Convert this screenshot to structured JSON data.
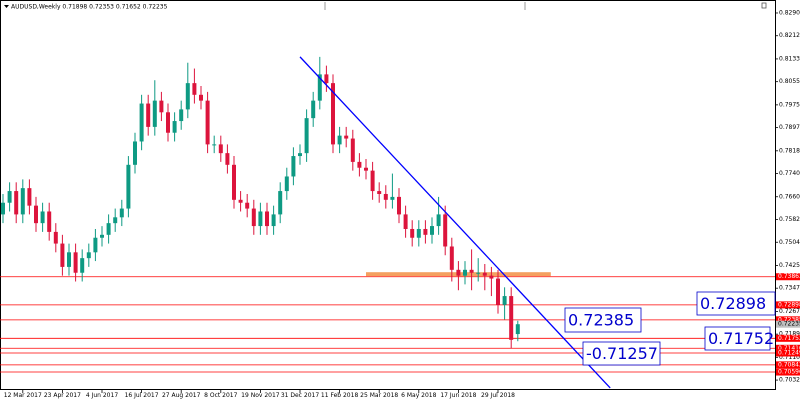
{
  "chart_data": {
    "type": "candlestick",
    "title": "AUDUSD,Weekly",
    "colors": {
      "up": "#0e9a83",
      "down": "#dc143c"
    },
    "categories": [
      null,
      null,
      null,
      "12 Mar 2017",
      null,
      null,
      null,
      null,
      null,
      "23 Apr 2017",
      null,
      null,
      null,
      null,
      null,
      "4 Jun 2017",
      null,
      null,
      null,
      null,
      null,
      "16 Jul 2017",
      null,
      null,
      null,
      null,
      null,
      "27 Aug 2017",
      null,
      null,
      null,
      null,
      null,
      "8 Oct 2017",
      null,
      null,
      null,
      null,
      null,
      "19 Nov 2017",
      null,
      null,
      null,
      null,
      null,
      "31 Dec 2017",
      null,
      null,
      null,
      null,
      null,
      "11 Feb 2018",
      null,
      null,
      null,
      null,
      null,
      "25 Mar 2018",
      null,
      null,
      null,
      null,
      null,
      "6 May 2018",
      null,
      null,
      null,
      null,
      null,
      "17 Jun 2018",
      null,
      null,
      null,
      null,
      null,
      "29 Jul 2018",
      null,
      null,
      null
    ],
    "open": [
      0.76,
      0.764,
      0.768,
      0.76,
      0.769,
      0.763,
      0.757,
      0.761,
      0.754,
      0.75,
      0.742,
      0.747,
      0.74,
      0.745,
      0.747,
      0.752,
      0.753,
      0.757,
      0.759,
      0.762,
      0.777,
      0.785,
      0.798,
      0.79,
      0.799,
      0.795,
      0.788,
      0.792,
      0.796,
      0.805,
      0.801,
      0.799,
      0.784,
      0.784,
      0.781,
      0.777,
      0.765,
      0.764,
      0.762,
      0.756,
      0.761,
      0.756,
      0.76,
      0.768,
      0.773,
      0.78,
      0.781,
      0.793,
      0.799,
      0.808,
      0.805,
      0.784,
      0.787,
      0.786,
      0.778,
      0.776,
      0.775,
      0.768,
      0.767,
      0.765,
      0.766,
      0.76,
      0.755,
      0.752,
      0.755,
      0.753,
      0.756,
      0.76,
      0.749,
      0.741,
      0.739,
      0.741,
      0.74,
      0.74,
      0.739,
      0.738,
      0.729,
      0.732,
      0.71898
    ],
    "high": [
      0.767,
      0.771,
      0.771,
      0.772,
      0.772,
      0.766,
      0.764,
      0.764,
      0.757,
      0.753,
      0.75,
      0.75,
      0.748,
      0.75,
      0.755,
      0.756,
      0.76,
      0.762,
      0.765,
      0.78,
      0.788,
      0.801,
      0.801,
      0.806,
      0.802,
      0.798,
      0.795,
      0.799,
      0.812,
      0.81,
      0.804,
      0.802,
      0.787,
      0.787,
      0.784,
      0.78,
      0.768,
      0.767,
      0.765,
      0.764,
      0.764,
      0.763,
      0.771,
      0.776,
      0.783,
      0.784,
      0.796,
      0.802,
      0.814,
      0.811,
      0.808,
      0.79,
      0.79,
      0.789,
      0.781,
      0.779,
      0.778,
      0.771,
      0.77,
      0.774,
      0.769,
      0.763,
      0.758,
      0.758,
      0.758,
      0.759,
      0.766,
      0.763,
      0.752,
      0.744,
      0.744,
      0.748,
      0.745,
      0.743,
      0.742,
      0.741,
      0.735,
      0.735,
      0.72353
    ],
    "low": [
      0.757,
      0.761,
      0.757,
      0.757,
      0.76,
      0.754,
      0.754,
      0.751,
      0.747,
      0.739,
      0.739,
      0.737,
      0.737,
      0.742,
      0.744,
      0.749,
      0.75,
      0.754,
      0.756,
      0.759,
      0.774,
      0.782,
      0.787,
      0.787,
      0.792,
      0.785,
      0.785,
      0.789,
      0.793,
      0.798,
      0.796,
      0.781,
      0.781,
      0.778,
      0.774,
      0.762,
      0.761,
      0.759,
      0.753,
      0.753,
      0.753,
      0.753,
      0.757,
      0.765,
      0.77,
      0.777,
      0.778,
      0.79,
      0.796,
      0.802,
      0.781,
      0.781,
      0.783,
      0.775,
      0.773,
      0.772,
      0.765,
      0.764,
      0.762,
      0.762,
      0.757,
      0.752,
      0.749,
      0.749,
      0.75,
      0.75,
      0.753,
      0.746,
      0.737,
      0.734,
      0.736,
      0.734,
      0.737,
      0.734,
      0.732,
      0.726,
      0.724,
      0.714,
      0.71652
    ],
    "close": [
      0.764,
      0.768,
      0.76,
      0.769,
      0.763,
      0.757,
      0.761,
      0.754,
      0.75,
      0.742,
      0.747,
      0.74,
      0.745,
      0.747,
      0.752,
      0.753,
      0.757,
      0.759,
      0.762,
      0.777,
      0.785,
      0.798,
      0.79,
      0.799,
      0.795,
      0.788,
      0.792,
      0.796,
      0.805,
      0.801,
      0.799,
      0.784,
      0.784,
      0.781,
      0.777,
      0.765,
      0.764,
      0.762,
      0.756,
      0.761,
      0.756,
      0.76,
      0.768,
      0.773,
      0.78,
      0.781,
      0.793,
      0.799,
      0.808,
      0.805,
      0.784,
      0.787,
      0.786,
      0.778,
      0.776,
      0.775,
      0.768,
      0.767,
      0.765,
      0.766,
      0.76,
      0.755,
      0.752,
      0.755,
      0.753,
      0.756,
      0.76,
      0.749,
      0.741,
      0.739,
      0.741,
      0.74,
      0.74,
      0.739,
      0.738,
      0.729,
      0.732,
      0.717,
      0.72235
    ],
    "ylim": [
      0.6998,
      0.8335
    ],
    "yticks": [
      0.82905,
      0.82125,
      {
        "value": 0.8133,
        "label": "0.81330"
      },
      {
        "value": 0.8055,
        "label": "0.80550"
      },
      0.79755,
      0.78975,
      {
        "value": 0.7818,
        "label": "0.78180"
      },
      {
        "value": 0.774,
        "label": "0.77400"
      },
      0.76605,
      0.75825,
      0.75045,
      {
        "value": 0.7425,
        "label": "0.74250"
      },
      {
        "value": 0.7347,
        "label": "0.73470"
      },
      0.72675,
      0.71895,
      {
        "value": 0.711,
        "label": "0.71100"
      },
      {
        "value": 0.7032,
        "label": "0.70320"
      }
    ],
    "hlines": [
      0.73863,
      0.72898,
      0.72385,
      0.71752,
      {
        "value": 0.7141,
        "label": "0.71410"
      },
      0.71249,
      0.70842,
      0.70596
    ],
    "hline_color": "#ff0000",
    "zone": {
      "value": 0.7395,
      "start": 55,
      "end": 83,
      "color": "#f4a060"
    },
    "trendline": {
      "start": [
        45,
        0.814
      ],
      "end": [
        92,
        0.7005
      ],
      "color": "#0000ff"
    },
    "annotations": [
      "0.72898",
      "0.72385",
      "-0.71257",
      "0.71752"
    ]
  }
}
